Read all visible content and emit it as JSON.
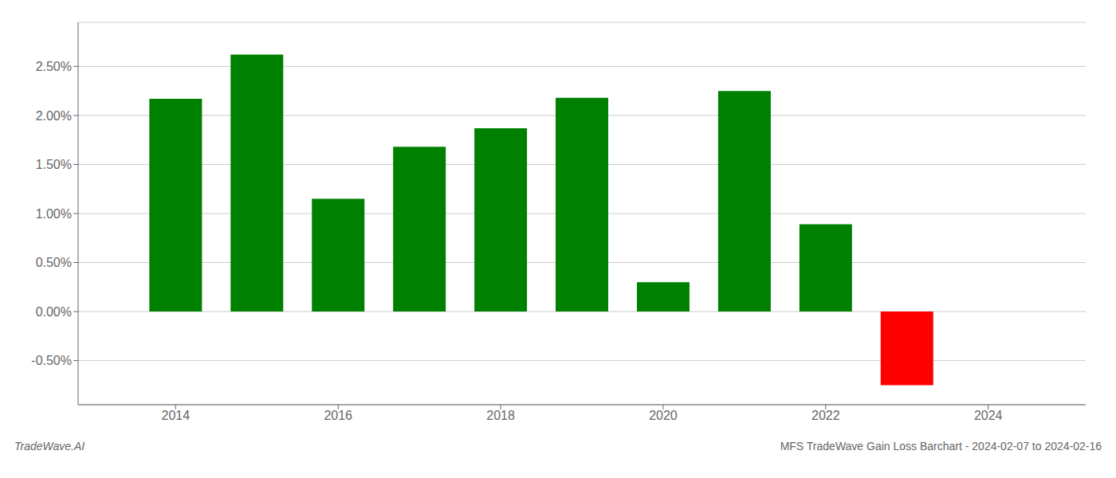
{
  "chart_data": {
    "type": "bar",
    "title": "MFS TradeWave Gain Loss Barchart - 2024-02-07 to 2024-02-16",
    "annotations": [
      "TradeWave.AI"
    ],
    "x": [
      2014,
      2015,
      2016,
      2017,
      2018,
      2019,
      2020,
      2021,
      2022,
      2023
    ],
    "values": [
      0.0217,
      0.0262,
      0.0115,
      0.0168,
      0.0187,
      0.0218,
      0.003,
      0.0225,
      0.0089,
      -0.0075
    ],
    "colors": [
      "#008000",
      "#008000",
      "#008000",
      "#008000",
      "#008000",
      "#008000",
      "#008000",
      "#008000",
      "#008000",
      "#ff0000"
    ],
    "xlim": [
      2012.8,
      2025.2
    ],
    "xticks": [
      2014,
      2016,
      2018,
      2020,
      2022,
      2024
    ],
    "ylim": [
      -0.0095,
      0.0295
    ],
    "yticks": [
      {
        "value": -0.005,
        "label": "-0.50%"
      },
      {
        "value": 0.0,
        "label": "0.00%"
      },
      {
        "value": 0.005,
        "label": "0.50%"
      },
      {
        "value": 0.01,
        "label": "1.00%"
      },
      {
        "value": 0.015,
        "label": "1.50%"
      },
      {
        "value": 0.02,
        "label": "2.00%"
      },
      {
        "value": 0.025,
        "label": "2.50%"
      }
    ],
    "grid": true
  }
}
